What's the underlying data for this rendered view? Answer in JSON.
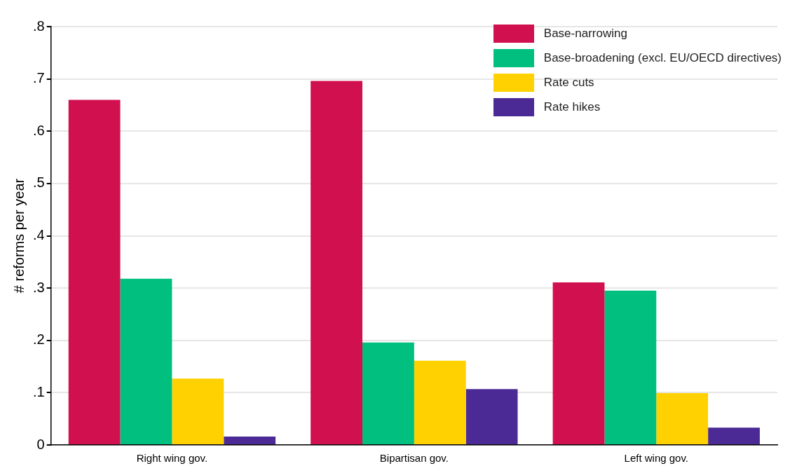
{
  "chart_data": {
    "type": "bar",
    "ylabel": "# reforms per year",
    "categories": [
      "Right wing gov.",
      "Bipartisan gov.",
      "Left wing gov."
    ],
    "series": [
      {
        "name": "Base-narrowing",
        "color": "#d1114f",
        "values": [
          0.66,
          0.696,
          0.311
        ]
      },
      {
        "name": "Base-broadening (excl. EU/OECD directives)",
        "color": "#00bf7f",
        "values": [
          0.318,
          0.196,
          0.295
        ]
      },
      {
        "name": "Rate cuts",
        "color": "#ffd100",
        "values": [
          0.127,
          0.161,
          0.099
        ]
      },
      {
        "name": "Rate hikes",
        "color": "#4b2a96",
        "values": [
          0.016,
          0.107,
          0.033
        ]
      }
    ],
    "ylim": [
      0,
      0.8
    ],
    "yticks": [
      {
        "value": 0,
        "label": "0"
      },
      {
        "value": 0.1,
        "label": ".1"
      },
      {
        "value": 0.2,
        "label": ".2"
      },
      {
        "value": 0.3,
        "label": ".3"
      },
      {
        "value": 0.4,
        "label": ".4"
      },
      {
        "value": 0.5,
        "label": ".5"
      },
      {
        "value": 0.6,
        "label": ".6"
      },
      {
        "value": 0.7,
        "label": ".7"
      },
      {
        "value": 0.8,
        "label": ".8"
      }
    ],
    "grid": "y",
    "legend": "top right"
  }
}
